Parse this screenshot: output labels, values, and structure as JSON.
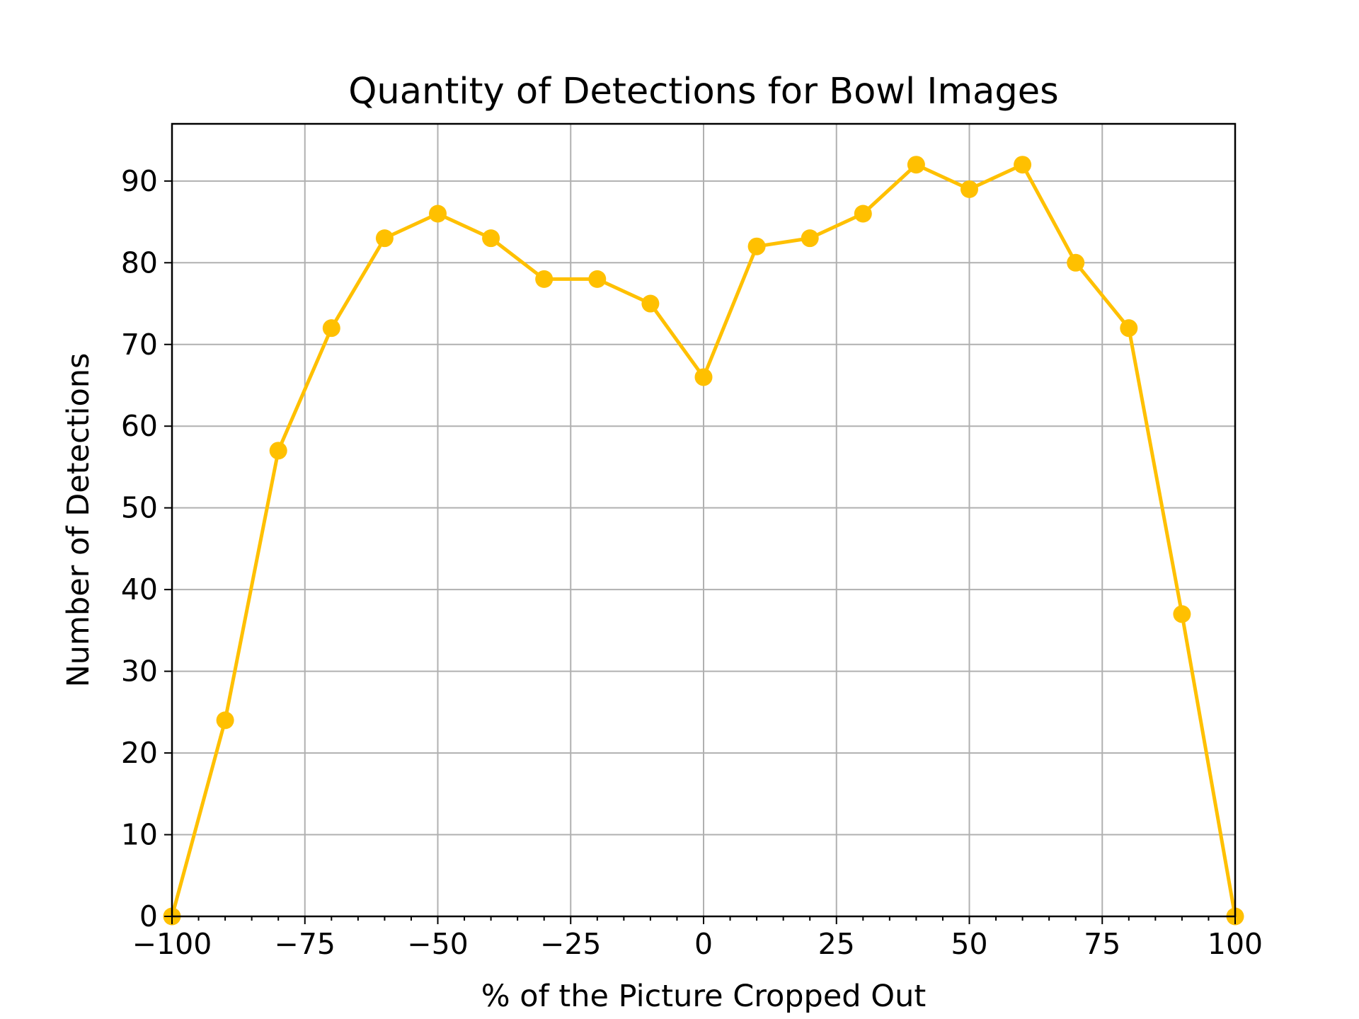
{
  "chart_data": {
    "type": "line",
    "title": "Quantity of Detections for Bowl Images",
    "xlabel": "% of the Picture Cropped Out",
    "ylabel": "Number of Detections",
    "xlim": [
      -100,
      100
    ],
    "ylim": [
      0,
      97
    ],
    "xticks": [
      -100,
      -75,
      -50,
      -25,
      0,
      25,
      50,
      75,
      100
    ],
    "xtick_labels": [
      "−100",
      "−75",
      "−50",
      "−25",
      "0",
      "25",
      "50",
      "75",
      "100"
    ],
    "yticks": [
      0,
      10,
      20,
      30,
      40,
      50,
      60,
      70,
      80,
      90
    ],
    "ytick_labels": [
      "0",
      "10",
      "20",
      "30",
      "40",
      "50",
      "60",
      "70",
      "80",
      "90"
    ],
    "grid": true,
    "color": "#FFC000",
    "series": [
      {
        "x": [
          -100,
          -90,
          -80,
          -70,
          -60,
          -50,
          -40,
          -30,
          -20,
          -10,
          0,
          10,
          20,
          30,
          40,
          50,
          60,
          70,
          80,
          90,
          100
        ],
        "y": [
          0,
          24,
          57,
          72,
          83,
          86,
          83,
          78,
          78,
          75,
          66,
          82,
          83,
          86,
          92,
          89,
          92,
          80,
          72,
          37,
          0
        ]
      }
    ]
  }
}
